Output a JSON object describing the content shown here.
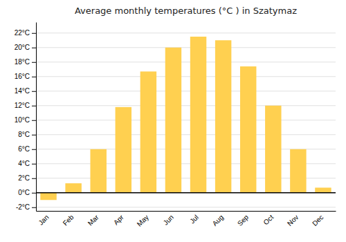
{
  "chart_data": {
    "type": "bar",
    "title": "Average monthly temperatures (°C ) in Szatymaz",
    "categories": [
      "Jan",
      "Feb",
      "Mar",
      "Apr",
      "May",
      "Jun",
      "Jul",
      "Aug",
      "Sep",
      "Oct",
      "Nov",
      "Dec"
    ],
    "values": [
      -1.0,
      1.3,
      6.0,
      11.8,
      16.7,
      20.0,
      21.5,
      21.0,
      17.4,
      12.0,
      6.0,
      0.7
    ],
    "color": "#FFD050",
    "ylim": [
      -2.5,
      23.5
    ],
    "yticks": [
      {
        "value": -2,
        "label": "-2°C"
      },
      {
        "value": 0,
        "label": "0°C"
      },
      {
        "value": 2,
        "label": "2°C"
      },
      {
        "value": 4,
        "label": "4°C"
      },
      {
        "value": 6,
        "label": "6°C"
      },
      {
        "value": 8,
        "label": "8°C"
      },
      {
        "value": 10,
        "label": "10°C"
      },
      {
        "value": 12,
        "label": "12°C"
      },
      {
        "value": 14,
        "label": "14°C"
      },
      {
        "value": 16,
        "label": "16°C"
      },
      {
        "value": 18,
        "label": "18°C"
      },
      {
        "value": 20,
        "label": "20°C"
      },
      {
        "value": 22,
        "label": "22°C"
      }
    ],
    "grid": true
  }
}
